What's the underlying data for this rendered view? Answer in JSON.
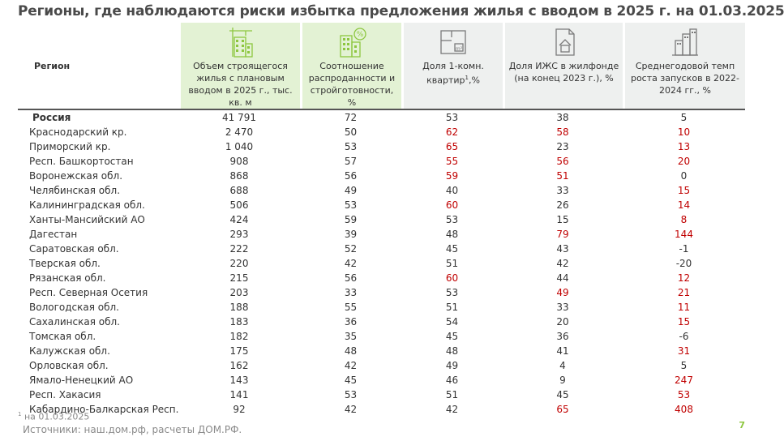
{
  "title": "Регионы, где наблюдаются риски избытка предложения жилья с вводом в 2025 г. на 01.03.2025",
  "headers": {
    "region": "Регион",
    "col1": "Объем строящегося жилья с плановым вводом в 2025 г., тыс. кв. м",
    "col2": "Соотношение распроданности и стройготовности, %",
    "col3": "Доля 1-комн. квартир",
    "col3_sup": "1",
    "col3_tail": ",%",
    "col4": "Доля ИЖС в жилфонде (на конец 2023 г.), %",
    "col5": "Среднегодовой темп роста запусков в 2022-2024 гг., %"
  },
  "header_icons": [
    "building-crane-icon",
    "building-percent-icon",
    "floorplan-icon",
    "house-document-icon",
    "buildings-chart-icon"
  ],
  "rows": [
    {
      "region": "Россия",
      "volume": "41 791",
      "ratio": "72",
      "one_room": "53",
      "izhs": "38",
      "growth": "5",
      "red": []
    },
    {
      "region": "Краснодарский кр.",
      "volume": "2 470",
      "ratio": "50",
      "one_room": "62",
      "izhs": "58",
      "growth": "10",
      "red": [
        "one_room",
        "izhs",
        "growth"
      ]
    },
    {
      "region": "Приморский кр.",
      "volume": "1 040",
      "ratio": "53",
      "one_room": "65",
      "izhs": "23",
      "growth": "13",
      "red": [
        "one_room",
        "growth"
      ]
    },
    {
      "region": "Респ. Башкортостан",
      "volume": "908",
      "ratio": "57",
      "one_room": "55",
      "izhs": "56",
      "growth": "20",
      "red": [
        "one_room",
        "izhs",
        "growth"
      ]
    },
    {
      "region": "Воронежская обл.",
      "volume": "868",
      "ratio": "56",
      "one_room": "59",
      "izhs": "51",
      "growth": "0",
      "red": [
        "one_room",
        "izhs"
      ]
    },
    {
      "region": "Челябинская обл.",
      "volume": "688",
      "ratio": "49",
      "one_room": "40",
      "izhs": "33",
      "growth": "15",
      "red": [
        "growth"
      ]
    },
    {
      "region": "Калининградская обл.",
      "volume": "506",
      "ratio": "53",
      "one_room": "60",
      "izhs": "26",
      "growth": "14",
      "red": [
        "one_room",
        "growth"
      ]
    },
    {
      "region": "Ханты-Мансийский АО",
      "volume": "424",
      "ratio": "59",
      "one_room": "53",
      "izhs": "15",
      "growth": "8",
      "red": [
        "growth"
      ]
    },
    {
      "region": "Дагестан",
      "volume": "293",
      "ratio": "39",
      "one_room": "48",
      "izhs": "79",
      "growth": "144",
      "red": [
        "izhs",
        "growth"
      ]
    },
    {
      "region": "Саратовская обл.",
      "volume": "222",
      "ratio": "52",
      "one_room": "45",
      "izhs": "43",
      "growth": "-1",
      "red": []
    },
    {
      "region": "Тверская обл.",
      "volume": "220",
      "ratio": "42",
      "one_room": "51",
      "izhs": "42",
      "growth": "-20",
      "red": []
    },
    {
      "region": "Рязанская обл.",
      "volume": "215",
      "ratio": "56",
      "one_room": "60",
      "izhs": "44",
      "growth": "12",
      "red": [
        "one_room",
        "growth"
      ]
    },
    {
      "region": "Респ. Северная Осетия",
      "volume": "203",
      "ratio": "33",
      "one_room": "53",
      "izhs": "49",
      "growth": "21",
      "red": [
        "izhs",
        "growth"
      ]
    },
    {
      "region": "Вологодская обл.",
      "volume": "188",
      "ratio": "55",
      "one_room": "51",
      "izhs": "33",
      "growth": "11",
      "red": [
        "growth"
      ]
    },
    {
      "region": "Сахалинская обл.",
      "volume": "183",
      "ratio": "36",
      "one_room": "54",
      "izhs": "20",
      "growth": "15",
      "red": [
        "growth"
      ]
    },
    {
      "region": "Томская обл.",
      "volume": "182",
      "ratio": "35",
      "one_room": "45",
      "izhs": "36",
      "growth": "-6",
      "red": []
    },
    {
      "region": "Калужская обл.",
      "volume": "175",
      "ratio": "48",
      "one_room": "48",
      "izhs": "41",
      "growth": "31",
      "red": [
        "growth"
      ]
    },
    {
      "region": "Орловская обл.",
      "volume": "162",
      "ratio": "42",
      "one_room": "49",
      "izhs": "4",
      "growth": "5",
      "red": []
    },
    {
      "region": "Ямало-Ненецкий АО",
      "volume": "143",
      "ratio": "45",
      "one_room": "46",
      "izhs": "9",
      "growth": "247",
      "red": [
        "growth"
      ]
    },
    {
      "region": "Респ. Хакасия",
      "volume": "141",
      "ratio": "53",
      "one_room": "51",
      "izhs": "45",
      "growth": "53",
      "red": [
        "growth"
      ]
    },
    {
      "region": "Кабардино-Балкарская Респ.",
      "volume": "92",
      "ratio": "42",
      "one_room": "42",
      "izhs": "65",
      "growth": "408",
      "red": [
        "izhs",
        "growth"
      ]
    }
  ],
  "footnote_mark": "1",
  "footnote_text": " на 01.03.2025",
  "source": "Источники: наш.дом.рф, расчеты ДОМ.РФ.",
  "page_number": "7",
  "colors": {
    "highlight_red": "#c00000",
    "header_green": "#e3f2d4",
    "header_gray": "#eef0ef",
    "accent_green": "#8dc63f"
  }
}
